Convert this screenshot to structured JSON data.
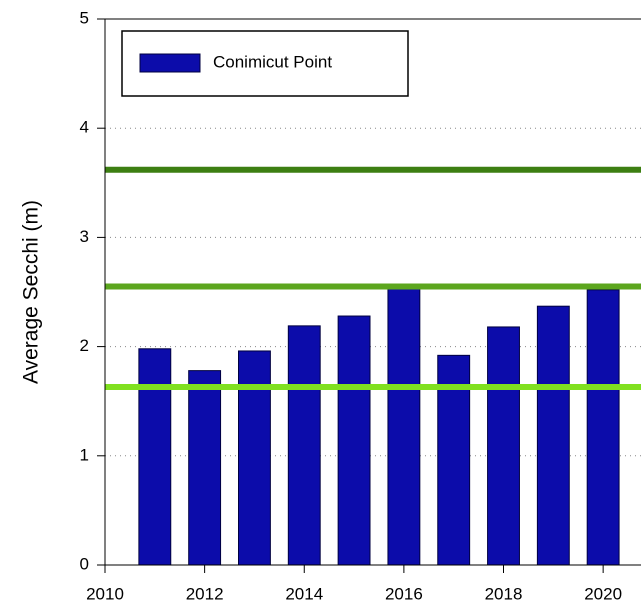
{
  "chart_data": {
    "type": "bar",
    "y_label": "Average Secchi (m)",
    "x": [
      2011,
      2012,
      2013,
      2014,
      2015,
      2016,
      2017,
      2018,
      2019,
      2020
    ],
    "series": [
      {
        "name": "Conimicut Point",
        "color": "#0c0caa",
        "values": [
          1.98,
          1.78,
          1.96,
          2.19,
          2.28,
          2.53,
          1.92,
          2.18,
          2.37,
          2.52
        ]
      }
    ],
    "xlim": [
      2010,
      2020.76
    ],
    "xticks": [
      2010,
      2012,
      2014,
      2016,
      2018,
      2020
    ],
    "ylim": [
      0,
      5
    ],
    "yticks": [
      0,
      1,
      2,
      3,
      4,
      5
    ],
    "grid": true,
    "legend": "upper left",
    "hlines": [
      {
        "value": 3.62,
        "color": "#3d7f12"
      },
      {
        "value": 2.55,
        "color": "#5ca61e"
      },
      {
        "value": 1.63,
        "color": "#80e020"
      }
    ]
  }
}
